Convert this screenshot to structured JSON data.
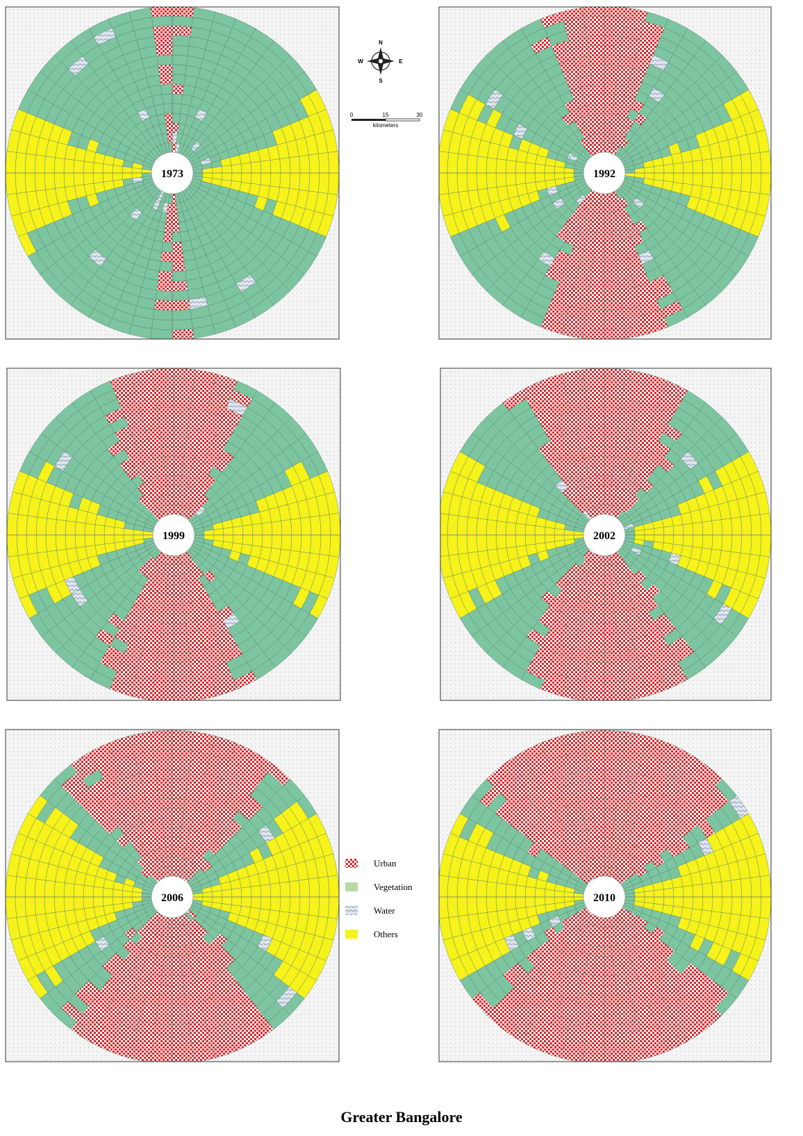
{
  "panels": [
    {
      "year": "1973"
    },
    {
      "year": "1992"
    },
    {
      "year": "1999"
    },
    {
      "year": "2002"
    },
    {
      "year": "2006"
    },
    {
      "year": "2010"
    }
  ],
  "compass": {
    "n": "N",
    "s": "S",
    "e": "E",
    "w": "W"
  },
  "scale": {
    "ticks": [
      "0",
      "15",
      "30"
    ],
    "unit": "kilometers"
  },
  "legend": [
    "Urban",
    "Vegetation",
    "Water",
    "Others"
  ],
  "title": "Greater Bangalore"
}
